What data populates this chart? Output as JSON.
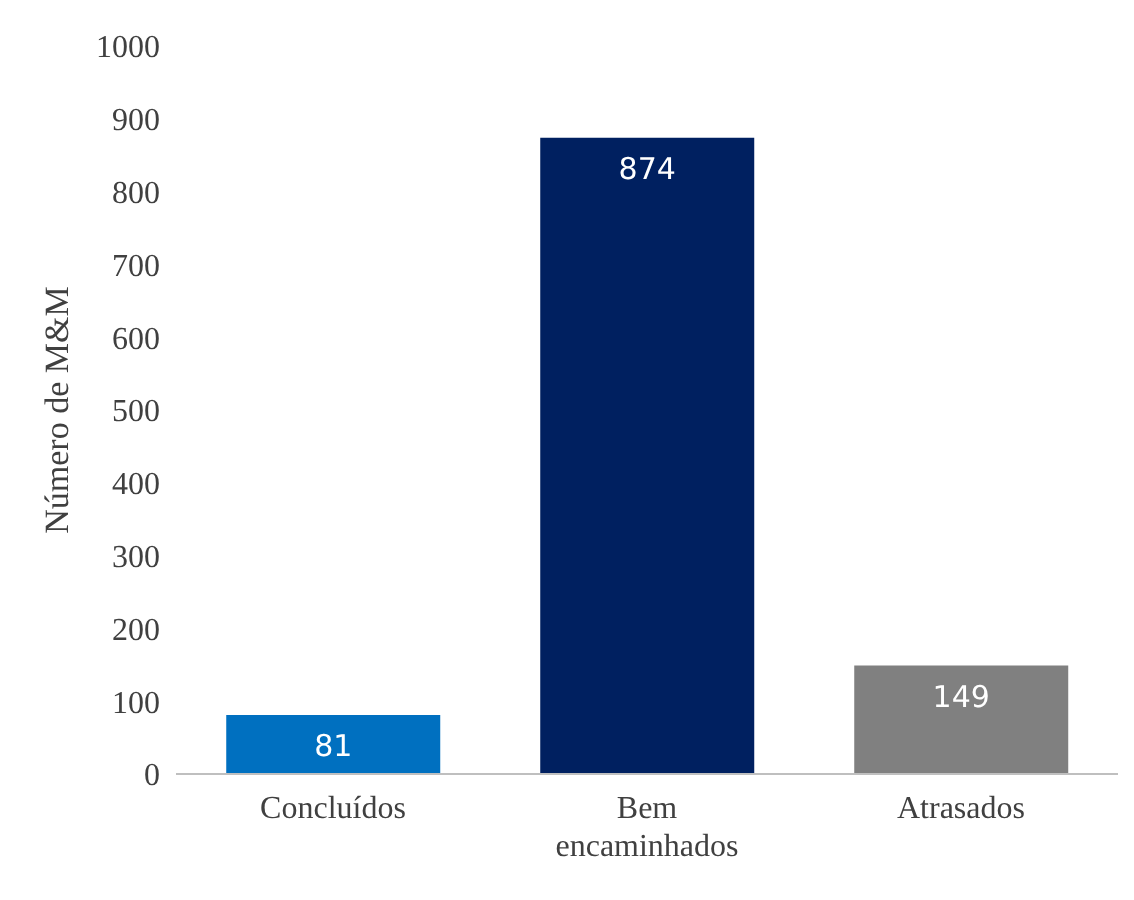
{
  "chart_data": {
    "type": "bar",
    "ylabel": "Número de M&M",
    "categories": [
      "Concluídos",
      "Bem encaminhados",
      "Atrasados"
    ],
    "values": [
      81,
      874,
      149
    ],
    "colors": [
      "#0070c0",
      "#002060",
      "#808080"
    ],
    "ylim": [
      0,
      1000
    ],
    "yticks": [
      0,
      100,
      200,
      300,
      400,
      500,
      600,
      700,
      800,
      900,
      1000
    ],
    "data_labels": true
  }
}
